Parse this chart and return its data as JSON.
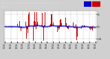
{
  "title": "Wind Speed: Normalized and Average (24 H...(New)",
  "bg_color": "#d0d0d0",
  "plot_bg": "#ffffff",
  "grid_color": "#b0b0b0",
  "bar_color": "#cc0000",
  "avg_color": "#0000cc",
  "ylim": [
    -6.5,
    6.5
  ],
  "y_ticks": [
    -5,
    0,
    5
  ],
  "n_points": 144,
  "title_bg": "#333333",
  "title_fg": "#dddddd"
}
